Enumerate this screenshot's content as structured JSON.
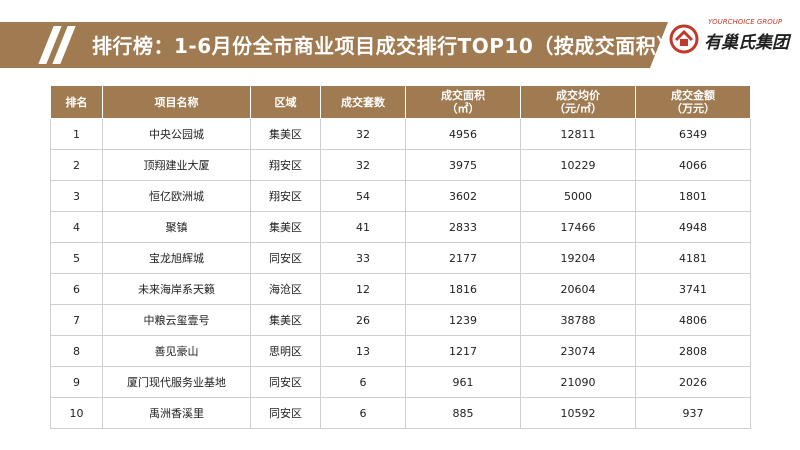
{
  "header": {
    "title": "排行榜：1-6月份全市商业项目成交排行TOP10（按成交面积）",
    "logo_en": "YOURCHOICE GROUP",
    "logo_cn": "有巢氏集团"
  },
  "table": {
    "columns": [
      {
        "line1": "排名",
        "line2": ""
      },
      {
        "line1": "项目名称",
        "line2": ""
      },
      {
        "line1": "区域",
        "line2": ""
      },
      {
        "line1": "成交套数",
        "line2": ""
      },
      {
        "line1": "成交面积",
        "line2": "（㎡）"
      },
      {
        "line1": "成交均价",
        "line2": "（元/㎡）"
      },
      {
        "line1": "成交金额",
        "line2": "（万元）"
      }
    ],
    "rows": [
      {
        "rank": "1",
        "name": "中央公园城",
        "area": "集美区",
        "units": "32",
        "sqm": "4956",
        "price": "12811",
        "amount": "6349"
      },
      {
        "rank": "2",
        "name": "顶翔建业大厦",
        "area": "翔安区",
        "units": "32",
        "sqm": "3975",
        "price": "10229",
        "amount": "4066"
      },
      {
        "rank": "3",
        "name": "恒亿欧洲城",
        "area": "翔安区",
        "units": "54",
        "sqm": "3602",
        "price": "5000",
        "amount": "1801"
      },
      {
        "rank": "4",
        "name": "聚镇",
        "area": "集美区",
        "units": "41",
        "sqm": "2833",
        "price": "17466",
        "amount": "4948"
      },
      {
        "rank": "5",
        "name": "宝龙旭辉城",
        "area": "同安区",
        "units": "33",
        "sqm": "2177",
        "price": "19204",
        "amount": "4181"
      },
      {
        "rank": "6",
        "name": "未来海岸系天籁",
        "area": "海沧区",
        "units": "12",
        "sqm": "1816",
        "price": "20604",
        "amount": "3741"
      },
      {
        "rank": "7",
        "name": "中粮云玺壹号",
        "area": "集美区",
        "units": "26",
        "sqm": "1239",
        "price": "38788",
        "amount": "4806"
      },
      {
        "rank": "8",
        "name": "善见豪山",
        "area": "思明区",
        "units": "13",
        "sqm": "1217",
        "price": "23074",
        "amount": "2808"
      },
      {
        "rank": "9",
        "name": "厦门现代服务业基地",
        "area": "同安区",
        "units": "6",
        "sqm": "961",
        "price": "21090",
        "amount": "2026"
      },
      {
        "rank": "10",
        "name": "禹洲香溪里",
        "area": "同安区",
        "units": "6",
        "sqm": "885",
        "price": "10592",
        "amount": "937"
      }
    ]
  },
  "colors": {
    "accent": "#a07a50",
    "logo_red": "#c0392b"
  }
}
